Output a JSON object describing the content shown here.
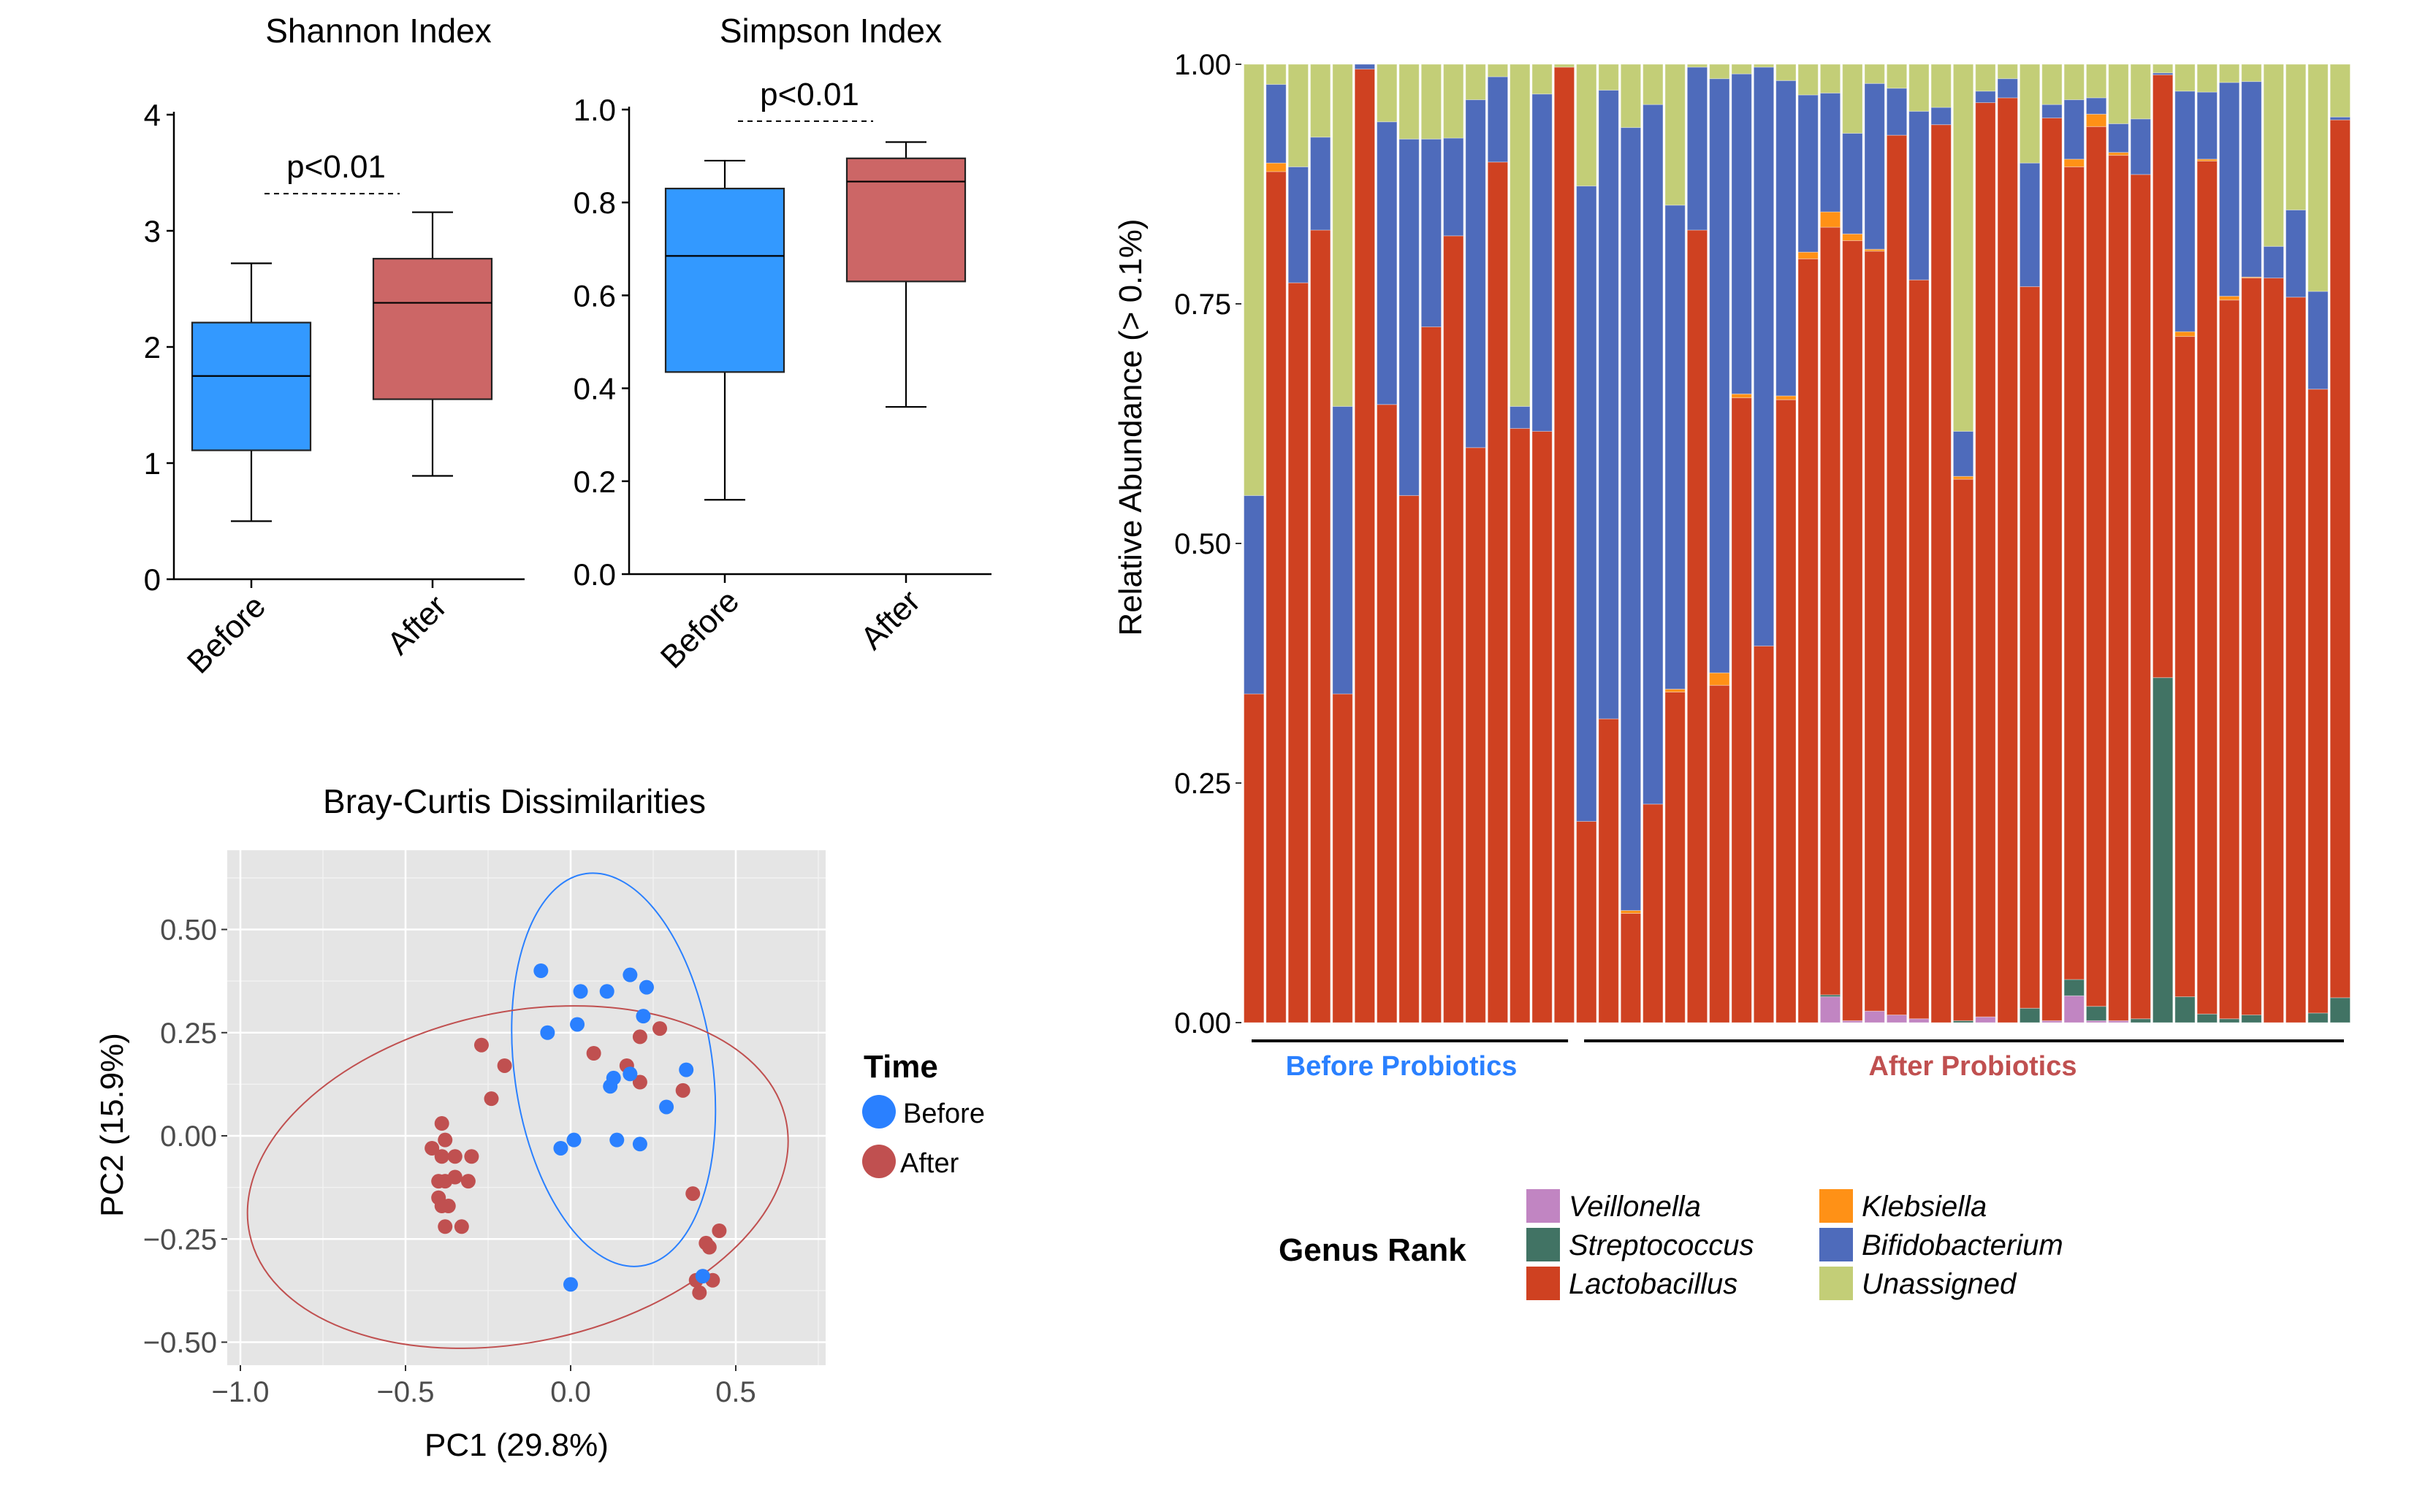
{
  "chart_data": [
    {
      "type": "box",
      "title": "Shannon Index",
      "xlabel": "",
      "ylabel": "",
      "ylim": [
        0,
        4
      ],
      "yticks": [
        "0",
        "1",
        "2",
        "3",
        "4"
      ],
      "ytick_values": [
        0,
        1,
        2,
        3,
        4
      ],
      "categories": [
        "Before",
        "After"
      ],
      "boxes": [
        {
          "name": "Before",
          "min": 0.5,
          "q1": 1.11,
          "median": 1.75,
          "q3": 2.21,
          "max": 2.72,
          "color": "#3399FF"
        },
        {
          "name": "After",
          "min": 0.89,
          "q1": 1.55,
          "median": 2.38,
          "q3": 2.76,
          "max": 3.16,
          "color": "#CC6666"
        }
      ],
      "annotation": {
        "text": "p<0.01",
        "y": 3.32
      }
    },
    {
      "type": "box",
      "title": "Simpson Index",
      "xlabel": "",
      "ylabel": "",
      "ylim": [
        0,
        1
      ],
      "yticks": [
        "0.0",
        "0.2",
        "0.4",
        "0.6",
        "0.8",
        "1.0"
      ],
      "ytick_values": [
        0,
        0.2,
        0.4,
        0.6,
        0.8,
        1.0
      ],
      "categories": [
        "Before",
        "After"
      ],
      "boxes": [
        {
          "name": "Before",
          "min": 0.16,
          "q1": 0.435,
          "median": 0.685,
          "q3": 0.83,
          "max": 0.89,
          "color": "#3399FF"
        },
        {
          "name": "After",
          "min": 0.36,
          "q1": 0.63,
          "median": 0.845,
          "q3": 0.895,
          "max": 0.93,
          "color": "#CC6666"
        }
      ],
      "annotation": {
        "text": "p<0.01",
        "y": 0.975
      }
    },
    {
      "type": "scatter",
      "title": "Bray-Curtis Dissimilarities",
      "xlabel": "PC1 (29.8%)",
      "ylabel": "PC2 (15.9%)",
      "xlim": [
        -1.08,
        0.76
      ],
      "ylim": [
        -0.55,
        0.72
      ],
      "xticks": [
        "−1.0",
        "−0.5",
        "0.0",
        "0.5"
      ],
      "xtick_values": [
        -1.0,
        -0.5,
        0.0,
        0.5
      ],
      "yticks": [
        "−0.50",
        "−0.25",
        "0.00",
        "0.25",
        "0.50"
      ],
      "ytick_values": [
        -0.5,
        -0.25,
        0.0,
        0.25,
        0.5
      ],
      "grid": true,
      "legend": {
        "title": "Time",
        "position": "right"
      },
      "series": [
        {
          "name": "Before",
          "color": "#2A80FF",
          "points": [
            [
              -0.09,
              0.4
            ],
            [
              0.03,
              0.35
            ],
            [
              0.11,
              0.35
            ],
            [
              0.18,
              0.39
            ],
            [
              0.23,
              0.36
            ],
            [
              0.22,
              0.29
            ],
            [
              -0.07,
              0.25
            ],
            [
              0.02,
              0.27
            ],
            [
              0.13,
              0.14
            ],
            [
              0.18,
              0.15
            ],
            [
              0.12,
              0.12
            ],
            [
              0.35,
              0.16
            ],
            [
              0.29,
              0.07
            ],
            [
              0.01,
              -0.01
            ],
            [
              -0.03,
              -0.03
            ],
            [
              0.14,
              -0.01
            ],
            [
              0.21,
              -0.02
            ],
            [
              0.0,
              -0.36
            ],
            [
              0.4,
              -0.34
            ]
          ],
          "ellipse": {
            "cx": 0.13,
            "cy": 0.16,
            "rx": 0.3,
            "ry": 0.48,
            "angle_deg": -8
          }
        },
        {
          "name": "After",
          "color": "#C05050",
          "points": [
            [
              -0.27,
              0.22
            ],
            [
              -0.2,
              0.17
            ],
            [
              -0.24,
              0.09
            ],
            [
              0.27,
              0.26
            ],
            [
              0.21,
              0.24
            ],
            [
              0.07,
              0.2
            ],
            [
              0.17,
              0.17
            ],
            [
              0.21,
              0.13
            ],
            [
              0.34,
              0.11
            ],
            [
              -0.39,
              0.03
            ],
            [
              -0.38,
              -0.01
            ],
            [
              -0.42,
              -0.03
            ],
            [
              -0.39,
              -0.05
            ],
            [
              -0.35,
              -0.05
            ],
            [
              -0.3,
              -0.05
            ],
            [
              -0.4,
              -0.11
            ],
            [
              -0.38,
              -0.11
            ],
            [
              -0.35,
              -0.1
            ],
            [
              -0.31,
              -0.11
            ],
            [
              -0.4,
              -0.15
            ],
            [
              -0.39,
              -0.17
            ],
            [
              -0.37,
              -0.17
            ],
            [
              -0.38,
              -0.22
            ],
            [
              -0.33,
              -0.22
            ],
            [
              0.37,
              -0.14
            ],
            [
              0.45,
              -0.23
            ],
            [
              0.41,
              -0.26
            ],
            [
              0.42,
              -0.27
            ],
            [
              0.38,
              -0.35
            ],
            [
              0.43,
              -0.35
            ],
            [
              0.39,
              -0.38
            ]
          ],
          "ellipse": {
            "cx": -0.16,
            "cy": -0.1,
            "rx": 0.83,
            "ry": 0.4,
            "angle_deg": -12
          }
        }
      ]
    },
    {
      "type": "stacked-bar",
      "title": "",
      "xlabel": "",
      "ylabel": "Relative Abundance (> 0.1%)",
      "ylim": [
        0,
        1
      ],
      "yticks": [
        "0.00",
        "0.25",
        "0.50",
        "0.75",
        "1.00"
      ],
      "ytick_values": [
        0,
        0.25,
        0.5,
        0.75,
        1.0
      ],
      "groups": [
        {
          "label": "Before Probiotics",
          "first_bar": 1,
          "last_bar": 15,
          "color": "#2A80FF"
        },
        {
          "label": "After Probiotics",
          "first_bar": 16,
          "last_bar": 50,
          "color": "#C05050"
        }
      ],
      "legend": {
        "title": "Genus Rank",
        "position": "bottom"
      },
      "stack_order": [
        "Veillonella",
        "Streptococcus",
        "Lactobacillus",
        "Klebsiella",
        "Bifidobacterium",
        "Unassigned"
      ],
      "colors": {
        "Veillonella": "#C185C2",
        "Streptococcus": "#417364",
        "Lactobacillus": "#CF4121",
        "Klebsiella": "#FF9116",
        "Bifidobacterium": "#4E6BBB",
        "Unassigned": "#C3CE77"
      },
      "bars": [
        {
          "Lactobacillus": 0.343,
          "Bifidobacterium": 0.207,
          "Unassigned": 0.45
        },
        {
          "Lactobacillus": 0.888,
          "Klebsiella": 0.009,
          "Bifidobacterium": 0.082,
          "Unassigned": 0.021
        },
        {
          "Lactobacillus": 0.772,
          "Bifidobacterium": 0.121,
          "Unassigned": 0.107
        },
        {
          "Lactobacillus": 0.827,
          "Bifidobacterium": 0.097,
          "Unassigned": 0.076
        },
        {
          "Lactobacillus": 0.343,
          "Bifidobacterium": 0.3,
          "Unassigned": 0.357
        },
        {
          "Lactobacillus": 0.995,
          "Bifidobacterium": 0.005
        },
        {
          "Lactobacillus": 0.645,
          "Bifidobacterium": 0.295,
          "Unassigned": 0.06
        },
        {
          "Lactobacillus": 0.55,
          "Bifidobacterium": 0.372,
          "Unassigned": 0.078
        },
        {
          "Lactobacillus": 0.726,
          "Bifidobacterium": 0.196,
          "Unassigned": 0.078
        },
        {
          "Lactobacillus": 0.821,
          "Bifidobacterium": 0.102,
          "Unassigned": 0.077
        },
        {
          "Lactobacillus": 0.6,
          "Bifidobacterium": 0.363,
          "Unassigned": 0.037
        },
        {
          "Lactobacillus": 0.898,
          "Bifidobacterium": 0.089,
          "Unassigned": 0.013
        },
        {
          "Lactobacillus": 0.62,
          "Bifidobacterium": 0.023,
          "Unassigned": 0.357
        },
        {
          "Lactobacillus": 0.617,
          "Bifidobacterium": 0.352,
          "Unassigned": 0.031
        },
        {
          "Lactobacillus": 0.997,
          "Unassigned": 0.003
        },
        {
          "Lactobacillus": 0.21,
          "Bifidobacterium": 0.663,
          "Unassigned": 0.127
        },
        {
          "Lactobacillus": 0.317,
          "Bifidobacterium": 0.656,
          "Unassigned": 0.027
        },
        {
          "Lactobacillus": 0.114,
          "Klebsiella": 0.003,
          "Bifidobacterium": 0.817,
          "Unassigned": 0.066
        },
        {
          "Lactobacillus": 0.228,
          "Bifidobacterium": 0.73,
          "Unassigned": 0.042
        },
        {
          "Lactobacillus": 0.345,
          "Klebsiella": 0.003,
          "Bifidobacterium": 0.505,
          "Unassigned": 0.147
        },
        {
          "Lactobacillus": 0.827,
          "Bifidobacterium": 0.17,
          "Unassigned": 0.003
        },
        {
          "Lactobacillus": 0.352,
          "Klebsiella": 0.013,
          "Bifidobacterium": 0.62,
          "Unassigned": 0.015
        },
        {
          "Lactobacillus": 0.652,
          "Klebsiella": 0.004,
          "Bifidobacterium": 0.334,
          "Unassigned": 0.01
        },
        {
          "Lactobacillus": 0.393,
          "Bifidobacterium": 0.604,
          "Unassigned": 0.003
        },
        {
          "Lactobacillus": 0.65,
          "Klebsiella": 0.004,
          "Bifidobacterium": 0.329,
          "Unassigned": 0.017
        },
        {
          "Lactobacillus": 0.797,
          "Klebsiella": 0.007,
          "Bifidobacterium": 0.164,
          "Unassigned": 0.032
        },
        {
          "Veillonella": 0.027,
          "Streptococcus": 0.002,
          "Lactobacillus": 0.801,
          "Klebsiella": 0.016,
          "Bifidobacterium": 0.124,
          "Unassigned": 0.03
        },
        {
          "Veillonella": 0.002,
          "Lactobacillus": 0.814,
          "Klebsiella": 0.007,
          "Bifidobacterium": 0.105,
          "Unassigned": 0.072
        },
        {
          "Veillonella": 0.012,
          "Lactobacillus": 0.793,
          "Klebsiella": 0.002,
          "Bifidobacterium": 0.173,
          "Unassigned": 0.02
        },
        {
          "Veillonella": 0.008,
          "Lactobacillus": 0.918,
          "Bifidobacterium": 0.049,
          "Unassigned": 0.025
        },
        {
          "Veillonella": 0.004,
          "Lactobacillus": 0.771,
          "Bifidobacterium": 0.176,
          "Unassigned": 0.049
        },
        {
          "Lactobacillus": 0.937,
          "Bifidobacterium": 0.018,
          "Unassigned": 0.045
        },
        {
          "Streptococcus": 0.002,
          "Lactobacillus": 0.565,
          "Klebsiella": 0.003,
          "Bifidobacterium": 0.047,
          "Unassigned": 0.383
        },
        {
          "Veillonella": 0.006,
          "Lactobacillus": 0.954,
          "Bifidobacterium": 0.012,
          "Unassigned": 0.028
        },
        {
          "Lactobacillus": 0.965,
          "Bifidobacterium": 0.02,
          "Unassigned": 0.015
        },
        {
          "Streptococcus": 0.015,
          "Lactobacillus": 0.753,
          "Bifidobacterium": 0.129,
          "Unassigned": 0.103
        },
        {
          "Veillonella": 0.002,
          "Lactobacillus": 0.942,
          "Bifidobacterium": 0.014,
          "Unassigned": 0.042
        },
        {
          "Veillonella": 0.028,
          "Streptococcus": 0.017,
          "Lactobacillus": 0.848,
          "Klebsiella": 0.008,
          "Bifidobacterium": 0.062,
          "Unassigned": 0.037
        },
        {
          "Veillonella": 0.002,
          "Streptococcus": 0.015,
          "Lactobacillus": 0.918,
          "Klebsiella": 0.013,
          "Bifidobacterium": 0.017,
          "Unassigned": 0.035
        },
        {
          "Veillonella": 0.002,
          "Lactobacillus": 0.903,
          "Klebsiella": 0.003,
          "Bifidobacterium": 0.03,
          "Unassigned": 0.062
        },
        {
          "Streptococcus": 0.004,
          "Lactobacillus": 0.881,
          "Bifidobacterium": 0.058,
          "Unassigned": 0.057
        },
        {
          "Streptococcus": 0.36,
          "Lactobacillus": 0.629,
          "Bifidobacterium": 0.002,
          "Unassigned": 0.009
        },
        {
          "Streptococcus": 0.027,
          "Lactobacillus": 0.689,
          "Klebsiella": 0.005,
          "Bifidobacterium": 0.251,
          "Unassigned": 0.028
        },
        {
          "Streptococcus": 0.009,
          "Lactobacillus": 0.89,
          "Klebsiella": 0.002,
          "Bifidobacterium": 0.07,
          "Unassigned": 0.029
        },
        {
          "Streptococcus": 0.004,
          "Lactobacillus": 0.75,
          "Klebsiella": 0.004,
          "Bifidobacterium": 0.223,
          "Unassigned": 0.019
        },
        {
          "Streptococcus": 0.008,
          "Lactobacillus": 0.769,
          "Klebsiella": 0.001,
          "Bifidobacterium": 0.204,
          "Unassigned": 0.018
        },
        {
          "Lactobacillus": 0.777,
          "Bifidobacterium": 0.033,
          "Unassigned": 0.19
        },
        {
          "Lactobacillus": 0.757,
          "Bifidobacterium": 0.091,
          "Unassigned": 0.152
        },
        {
          "Streptococcus": 0.01,
          "Lactobacillus": 0.651,
          "Bifidobacterium": 0.102,
          "Unassigned": 0.237
        },
        {
          "Streptococcus": 0.026,
          "Lactobacillus": 0.916,
          "Bifidobacterium": 0.003,
          "Unassigned": 0.055
        }
      ]
    }
  ],
  "labels": {
    "shannon_title": "Shannon Index",
    "simpson_title": "Simpson Index",
    "pvalue": "p<0.01",
    "before": "Before",
    "after": "After",
    "pca_title": "Bray-Curtis Dissimilarities",
    "pca_xlabel": "PC1 (29.8%)",
    "pca_ylabel": "PC2 (15.9%)",
    "time_legend_title": "Time",
    "bar_ylabel": "Relative Abundance (> 0.1%)",
    "before_probiotics": "Before Probiotics",
    "after_probiotics": "After Probiotics",
    "genus_legend_title": "Genus Rank",
    "genera": [
      "Veillonella",
      "Streptococcus",
      "Lactobacillus",
      "Klebsiella",
      "Bifidobacterium",
      "Unassigned"
    ]
  }
}
